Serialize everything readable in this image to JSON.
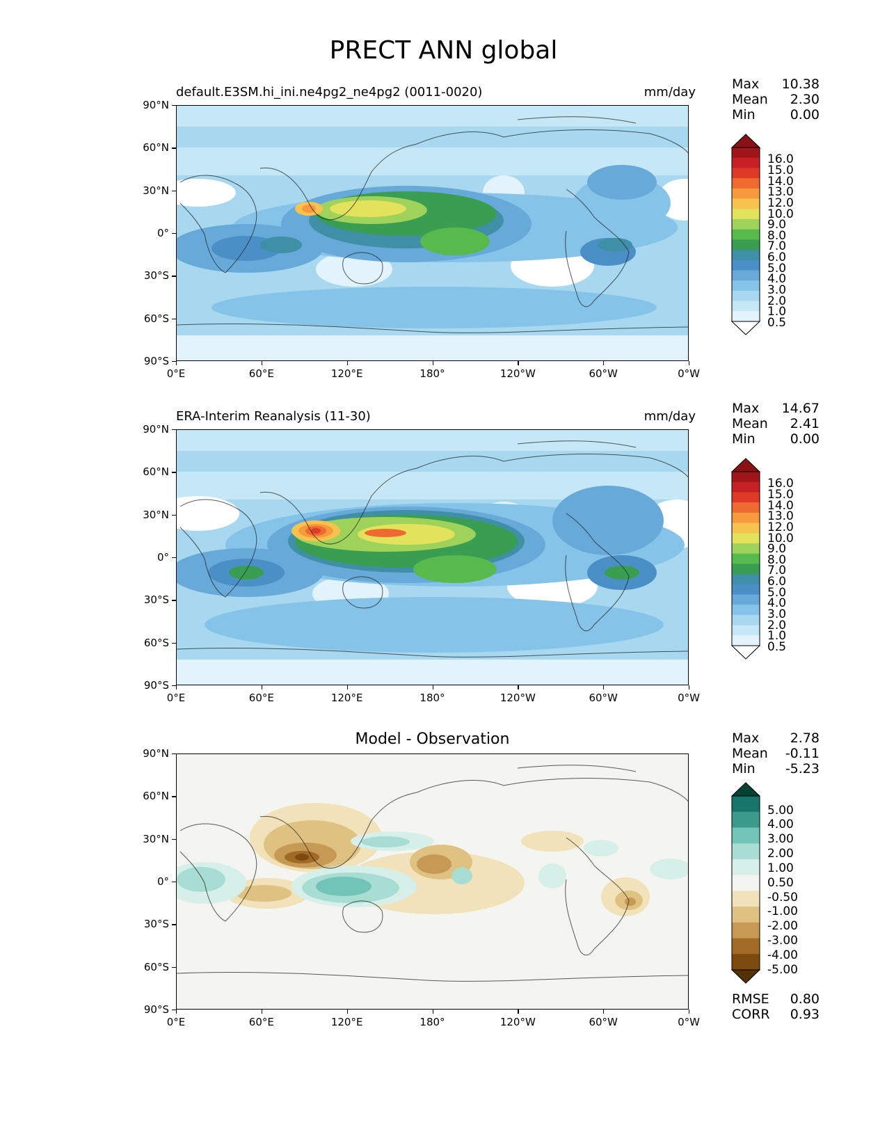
{
  "figure_title": "PRECT ANN global",
  "lat_ticks": [
    "90°N",
    "60°N",
    "30°N",
    "0°",
    "30°S",
    "60°S",
    "90°S"
  ],
  "lon_ticks": [
    "0°E",
    "60°E",
    "120°E",
    "180°",
    "120°W",
    "60°W",
    "0°W"
  ],
  "colors": {
    "precip_bar": [
      "#ffffff",
      "#e3f3fb",
      "#c6e8f6",
      "#a7d8f0",
      "#86c3e8",
      "#67a9d9",
      "#4a90c7",
      "#3f8fa6",
      "#3a9e52",
      "#58b94c",
      "#9fd25b",
      "#e3e25d",
      "#f8c24f",
      "#f79a3e",
      "#ef6a30",
      "#df3a27",
      "#c61f24",
      "#a0161a",
      "#8a1216"
    ],
    "diff_bar": [
      "#543005",
      "#7c4a0e",
      "#a16a26",
      "#c69a55",
      "#dfc182",
      "#f1e2b9",
      "#f4f4f0",
      "#d7efe9",
      "#a7ddd2",
      "#72c4b7",
      "#3a9b8d",
      "#17756b",
      "#014235"
    ]
  },
  "panels": [
    {
      "title_left": "default.E3SM.hi_ini.ne4pg2_ne4pg2 (0011-0020)",
      "units": "mm/day",
      "stats": [
        {
          "label": "Max",
          "value": "10.38"
        },
        {
          "label": "Mean",
          "value": "2.30"
        },
        {
          "label": "Min",
          "value": "0.00"
        }
      ],
      "colorbar_labels": [
        "16.0",
        "15.0",
        "14.0",
        "13.0",
        "12.0",
        "10.0",
        "9.0",
        "8.0",
        "7.0",
        "6.0",
        "5.0",
        "4.0",
        "3.0",
        "2.0",
        "1.0",
        "0.5"
      ]
    },
    {
      "title_left": "ERA-Interim Reanalysis (11-30)",
      "units": "mm/day",
      "stats": [
        {
          "label": "Max",
          "value": "14.67"
        },
        {
          "label": "Mean",
          "value": "2.41"
        },
        {
          "label": "Min",
          "value": "0.00"
        }
      ],
      "colorbar_labels": [
        "16.0",
        "15.0",
        "14.0",
        "13.0",
        "12.0",
        "10.0",
        "9.0",
        "8.0",
        "7.0",
        "6.0",
        "5.0",
        "4.0",
        "3.0",
        "2.0",
        "1.0",
        "0.5"
      ]
    },
    {
      "title_center": "Model - Observation",
      "stats": [
        {
          "label": "Max",
          "value": "2.78"
        },
        {
          "label": "Mean",
          "value": "-0.11"
        },
        {
          "label": "Min",
          "value": "-5.23"
        }
      ],
      "colorbar_labels": [
        "5.00",
        "4.00",
        "3.00",
        "2.00",
        "1.00",
        "0.50",
        "-0.50",
        "-1.00",
        "-2.00",
        "-3.00",
        "-4.00",
        "-5.00"
      ],
      "metrics": [
        {
          "label": "RMSE",
          "value": "0.80"
        },
        {
          "label": "CORR",
          "value": "0.93"
        }
      ]
    }
  ]
}
